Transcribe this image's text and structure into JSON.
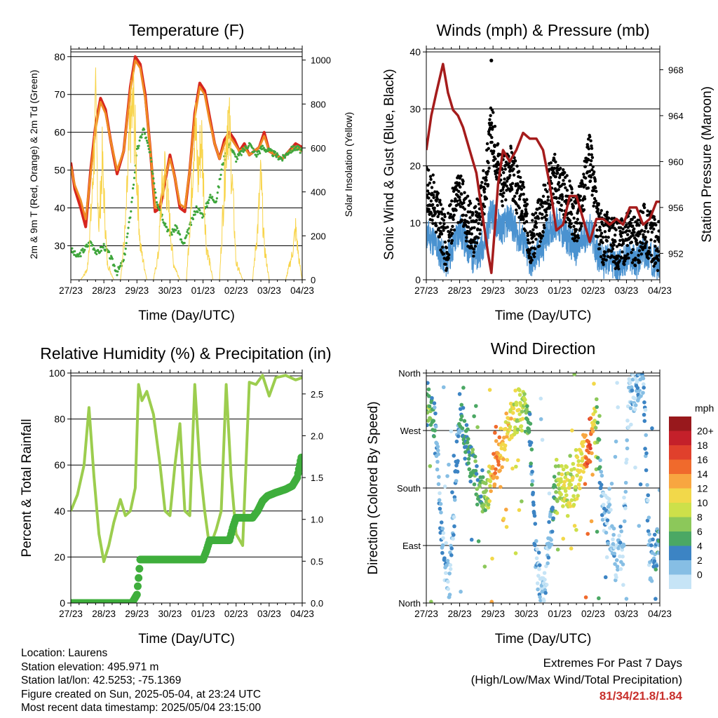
{
  "x_ticks": [
    "27/23",
    "28/23",
    "29/23",
    "30/23",
    "01/23",
    "02/23",
    "03/23",
    "04/23"
  ],
  "info": {
    "location": "Location: Laurens",
    "elevation": "Station elevation: 495.971 m",
    "latlon": "Station lat/lon: 42.5253; -75.1369",
    "created": "Figure created on Sun, 2025-05-04, at 23:24 UTC",
    "recent": "Most recent data timestamp: 2025/05/04 23:15:00"
  },
  "extremes": {
    "title": "Extremes For Past 7 Days",
    "subtitle": "(High/Low/Max Wind/Total Precipitation)",
    "values": "81/34/21.8/1.84",
    "color": "#c8302c"
  },
  "chart_data": [
    {
      "type": "line",
      "title": "Temperature (F)",
      "xlabel": "Time (Day/UTC)",
      "ylabel": "2m & 9m T (Red, Orange) & 2m Td (Green)",
      "y2label": "Solar Insolation (Yellow)",
      "x_unit": "days since 27/23",
      "xlim": [
        0,
        7
      ],
      "ylim": [
        21,
        82
      ],
      "y_ticks": [
        30,
        40,
        50,
        60,
        70,
        80
      ],
      "y2lim": [
        0,
        1050
      ],
      "y2_ticks": [
        0,
        200,
        400,
        600,
        800,
        1000
      ],
      "grid": "horizontal",
      "series": [
        {
          "name": "2m T",
          "color": "#d7261e",
          "x": [
            0,
            0.12,
            0.3,
            0.45,
            0.6,
            0.75,
            0.9,
            1.05,
            1.2,
            1.4,
            1.6,
            1.8,
            1.95,
            2.1,
            2.25,
            2.4,
            2.55,
            2.7,
            2.85,
            3.0,
            3.15,
            3.3,
            3.45,
            3.6,
            3.75,
            3.9,
            4.05,
            4.2,
            4.35,
            4.5,
            4.65,
            4.8,
            4.95,
            5.1,
            5.25,
            5.4,
            5.55,
            5.7,
            5.85,
            6.0,
            6.2,
            6.4,
            6.6,
            6.8,
            7.0
          ],
          "y": [
            52,
            45,
            40,
            35,
            50,
            62,
            69,
            66,
            58,
            49,
            55,
            72,
            80,
            78,
            70,
            56,
            39,
            40,
            47,
            54,
            48,
            40,
            39,
            50,
            65,
            73,
            71,
            64,
            57,
            53,
            58,
            60,
            58,
            55,
            57,
            54,
            55,
            56,
            60,
            55,
            54,
            53,
            55,
            57,
            56
          ]
        },
        {
          "name": "9m T",
          "color": "#f08a24",
          "x": [
            0,
            0.12,
            0.3,
            0.45,
            0.6,
            0.75,
            0.9,
            1.05,
            1.2,
            1.4,
            1.6,
            1.8,
            1.95,
            2.1,
            2.25,
            2.4,
            2.55,
            2.7,
            2.85,
            3.0,
            3.15,
            3.3,
            3.45,
            3.6,
            3.75,
            3.9,
            4.05,
            4.2,
            4.35,
            4.5,
            4.65,
            4.8,
            4.95,
            5.1,
            5.25,
            5.4,
            5.55,
            5.7,
            5.85,
            6.0,
            6.2,
            6.4,
            6.6,
            6.8,
            7.0
          ],
          "y": [
            51,
            46,
            42,
            37,
            49,
            61,
            68,
            65,
            58,
            50,
            55,
            71,
            79,
            77,
            69,
            56,
            40,
            41,
            48,
            53,
            48,
            41,
            40,
            50,
            64,
            72,
            70,
            63,
            57,
            53,
            57,
            59,
            57,
            55,
            56,
            54,
            55,
            56,
            59,
            55,
            54,
            53,
            55,
            56,
            55
          ]
        },
        {
          "name": "2m Td",
          "color": "#3fa63c",
          "x": [
            0,
            0.2,
            0.4,
            0.6,
            0.8,
            1.0,
            1.2,
            1.4,
            1.6,
            1.8,
            2.0,
            2.2,
            2.4,
            2.6,
            2.8,
            3.0,
            3.2,
            3.4,
            3.6,
            3.8,
            4.0,
            4.2,
            4.4,
            4.6,
            4.8,
            5.0,
            5.2,
            5.4,
            5.6,
            5.8,
            6.0,
            6.2,
            6.4,
            6.6,
            6.8,
            7.0
          ],
          "y": [
            29,
            27,
            29,
            31,
            28,
            30,
            27,
            23,
            26,
            38,
            55,
            61,
            54,
            42,
            37,
            33,
            35,
            30,
            35,
            40,
            38,
            43,
            42,
            52,
            57,
            53,
            55,
            57,
            54,
            56,
            55,
            54,
            53,
            55,
            56,
            55
          ]
        },
        {
          "name": "Solar Insolation",
          "axis": "y2",
          "color": "#f8d44a",
          "x": [
            0,
            0.3,
            0.5,
            0.65,
            0.75,
            0.85,
            0.95,
            1.1,
            1.3,
            1.5,
            1.65,
            1.8,
            1.9,
            2.1,
            2.3,
            2.5,
            2.65,
            2.75,
            2.85,
            3.1,
            3.3,
            3.5,
            3.65,
            3.75,
            3.85,
            3.95,
            4.1,
            4.3,
            4.5,
            4.65,
            4.75,
            4.85,
            5.0,
            5.2,
            5.5,
            5.65,
            5.75,
            5.85,
            6.0,
            6.2,
            6.5,
            6.7,
            6.8,
            6.9,
            7.0
          ],
          "y": [
            0,
            0,
            60,
            500,
            980,
            300,
            700,
            100,
            0,
            0,
            300,
            900,
            1000,
            200,
            0,
            0,
            150,
            500,
            650,
            100,
            0,
            0,
            500,
            950,
            600,
            850,
            200,
            0,
            0,
            600,
            1000,
            700,
            100,
            0,
            0,
            300,
            600,
            200,
            0,
            0,
            0,
            150,
            300,
            120,
            0
          ]
        }
      ]
    },
    {
      "type": "scatter",
      "title": "Winds (mph) & Pressure (mb)",
      "xlabel": "Time (Day/UTC)",
      "ylabel": "Sonic Wind & Gust (Blue, Black)",
      "y2label": "Station Pressure (Maroon)",
      "x_unit": "days since 27/23",
      "xlim": [
        0,
        7
      ],
      "ylim": [
        0,
        40.5
      ],
      "y_ticks": [
        0,
        10,
        20,
        30,
        40
      ],
      "y2lim": [
        949.7,
        969.8
      ],
      "y2_ticks": [
        952,
        956,
        960,
        964,
        968
      ],
      "grid": "horizontal",
      "series": [
        {
          "name": "Sonic Wind",
          "color": "#4a92d0",
          "x": [
            0,
            0.2,
            0.4,
            0.6,
            0.8,
            1.0,
            1.2,
            1.4,
            1.6,
            1.8,
            1.95,
            2.1,
            2.3,
            2.5,
            2.7,
            2.9,
            3.1,
            3.3,
            3.5,
            3.7,
            3.9,
            4.1,
            4.3,
            4.5,
            4.7,
            4.9,
            5.1,
            5.3,
            5.5,
            5.7,
            5.9,
            6.1,
            6.3,
            6.5,
            6.7,
            6.9,
            7.0
          ],
          "y": [
            8,
            7,
            5,
            3,
            6,
            9,
            6,
            4,
            5,
            8,
            12,
            10,
            9,
            11,
            8,
            7,
            3,
            4,
            6,
            9,
            10,
            8,
            7,
            5,
            7,
            9,
            5,
            3,
            4,
            2,
            3,
            4,
            3,
            5,
            4,
            3,
            3
          ]
        },
        {
          "name": "Gust",
          "color": "#000000",
          "x": [
            0,
            0.2,
            0.4,
            0.6,
            0.8,
            1.0,
            1.2,
            1.4,
            1.6,
            1.8,
            1.95,
            2.1,
            2.3,
            2.5,
            2.7,
            2.9,
            3.1,
            3.3,
            3.5,
            3.7,
            3.9,
            4.1,
            4.3,
            4.5,
            4.7,
            4.9,
            5.1,
            5.3,
            5.5,
            5.7,
            5.9,
            6.1,
            6.3,
            6.5,
            6.7,
            6.9,
            7.0
          ],
          "y": [
            16,
            14,
            10,
            6,
            12,
            15,
            11,
            8,
            12,
            18,
            27,
            22,
            17,
            20,
            16,
            13,
            7,
            9,
            12,
            17,
            18,
            15,
            13,
            10,
            15,
            22,
            11,
            7,
            8,
            6,
            7,
            8,
            6,
            9,
            8,
            6,
            6
          ]
        },
        {
          "name": "Station Pressure",
          "axis": "y2",
          "color": "#a51c1c",
          "x": [
            0,
            0.15,
            0.3,
            0.5,
            0.65,
            0.8,
            0.95,
            1.1,
            1.3,
            1.5,
            1.7,
            1.85,
            1.95,
            2.05,
            2.15,
            2.3,
            2.5,
            2.7,
            2.9,
            3.1,
            3.3,
            3.5,
            3.7,
            3.9,
            4.1,
            4.3,
            4.5,
            4.7,
            4.9,
            5.1,
            5.3,
            5.5,
            5.7,
            5.9,
            6.1,
            6.3,
            6.5,
            6.7,
            6.9,
            7.0
          ],
          "y": [
            961,
            964,
            966,
            968.5,
            966,
            964.5,
            964,
            963,
            961,
            959,
            955,
            952,
            950.3,
            954,
            958,
            961,
            960,
            961,
            962.5,
            962,
            962,
            961,
            958,
            954,
            954.5,
            957,
            957,
            955,
            953,
            955,
            955,
            954.5,
            955,
            954.5,
            956,
            956,
            954.5,
            955,
            956.5,
            956.5
          ]
        }
      ],
      "special_values": [
        {
          "x": 1.95,
          "y": 38.5,
          "name": "peak gust"
        }
      ]
    },
    {
      "type": "line",
      "title": "Relative Humidity (%) & Precipitation (in)",
      "xlabel": "Time (Day/UTC)",
      "ylabel": "Percent & Total Rainfall",
      "x_unit": "days since 27/23",
      "xlim": [
        0,
        7
      ],
      "ylim": [
        0,
        100
      ],
      "y_ticks": [
        0,
        20,
        40,
        60,
        80,
        100
      ],
      "y2lim": [
        0,
        2.75
      ],
      "y2_ticks": [
        0.0,
        0.5,
        1.0,
        1.5,
        2.0,
        2.5
      ],
      "grid": "horizontal",
      "series": [
        {
          "name": "Relative Humidity",
          "color": "#9ccd4e",
          "x": [
            0,
            0.2,
            0.4,
            0.55,
            0.7,
            0.85,
            1.0,
            1.15,
            1.3,
            1.5,
            1.65,
            1.8,
            1.95,
            2.05,
            2.15,
            2.3,
            2.5,
            2.7,
            2.85,
            3.0,
            3.15,
            3.3,
            3.45,
            3.6,
            3.75,
            3.9,
            4.05,
            4.2,
            4.4,
            4.55,
            4.7,
            4.85,
            5.0,
            5.2,
            5.4,
            5.6,
            5.8,
            6.0,
            6.2,
            6.5,
            6.8,
            7.0
          ],
          "y": [
            40,
            47,
            60,
            85,
            55,
            30,
            18,
            25,
            35,
            45,
            38,
            40,
            50,
            95,
            88,
            92,
            82,
            60,
            40,
            38,
            60,
            78,
            40,
            38,
            95,
            60,
            40,
            24,
            32,
            40,
            95,
            55,
            30,
            25,
            96,
            95,
            99,
            90,
            98,
            99,
            97,
            98
          ]
        },
        {
          "name": "Total Precipitation",
          "axis": "y2",
          "color": "#3fae3c",
          "x": [
            0,
            1.0,
            1.85,
            2.0,
            2.05,
            2.1,
            2.5,
            3.0,
            3.5,
            4.0,
            4.1,
            4.2,
            4.5,
            4.8,
            4.9,
            5.0,
            5.3,
            5.5,
            5.65,
            5.8,
            5.95,
            6.2,
            6.5,
            6.7,
            6.85,
            6.95,
            7.0
          ],
          "y": [
            0,
            0,
            0,
            0.1,
            0.3,
            0.52,
            0.52,
            0.52,
            0.52,
            0.52,
            0.62,
            0.75,
            0.75,
            0.75,
            0.9,
            1.02,
            1.02,
            1.02,
            1.1,
            1.22,
            1.28,
            1.32,
            1.36,
            1.4,
            1.5,
            1.7,
            1.78
          ]
        }
      ]
    },
    {
      "type": "scatter",
      "title": "Wind Direction",
      "xlabel": "Time (Day/UTC)",
      "ylabel": "Direction (Colored By Speed)",
      "x_unit": "days since 27/23",
      "xlim": [
        0,
        7
      ],
      "y_unit": "degrees",
      "ylim": [
        0,
        360
      ],
      "y_ticks": [
        0,
        90,
        180,
        270,
        360
      ],
      "y_tick_labels": [
        "North",
        "East",
        "South",
        "West",
        "North"
      ],
      "grid": "horizontal",
      "colorbar": {
        "title": "mph",
        "labels": [
          "20+",
          "18",
          "16",
          "14",
          "12",
          "10",
          "8",
          "6",
          "4",
          "2",
          "0"
        ],
        "colors": [
          "#98181c",
          "#c4202a",
          "#e0402c",
          "#f06a2c",
          "#f8a640",
          "#f2d84a",
          "#cde04a",
          "#8cc85a",
          "#4ba864",
          "#3c84c4",
          "#86bee4",
          "#c6e4f6"
        ]
      },
      "series": [
        {
          "name": "Direction",
          "x": [
            0.0,
            0.1,
            0.2,
            0.3,
            0.5,
            0.7,
            0.85,
            1.0,
            1.2,
            1.4,
            1.5,
            1.7,
            1.9,
            2.0,
            2.1,
            2.3,
            2.5,
            2.7,
            2.9,
            3.1,
            3.3,
            3.5,
            3.7,
            3.9,
            4.0,
            4.1,
            4.3,
            4.5,
            4.7,
            4.8,
            4.9,
            5.1,
            5.3,
            5.5,
            5.7,
            5.9,
            6.1,
            6.3,
            6.5,
            6.7,
            6.9
          ],
          "y": [
            310,
            320,
            300,
            250,
            80,
            40,
            160,
            300,
            250,
            210,
            190,
            175,
            185,
            195,
            220,
            250,
            290,
            300,
            300,
            280,
            60,
            20,
            100,
            190,
            180,
            185,
            175,
            195,
            225,
            245,
            260,
            290,
            150,
            120,
            60,
            100,
            340,
            330,
            350,
            60,
            90
          ],
          "speed": [
            6,
            8,
            5,
            3,
            2,
            1,
            3,
            4,
            5,
            6,
            6,
            6,
            10,
            14,
            16,
            12,
            12,
            10,
            10,
            5,
            2,
            1,
            2,
            8,
            9,
            10,
            10,
            10,
            12,
            16,
            18,
            8,
            2,
            2,
            1,
            2,
            1,
            2,
            2,
            3,
            4
          ]
        }
      ]
    }
  ]
}
